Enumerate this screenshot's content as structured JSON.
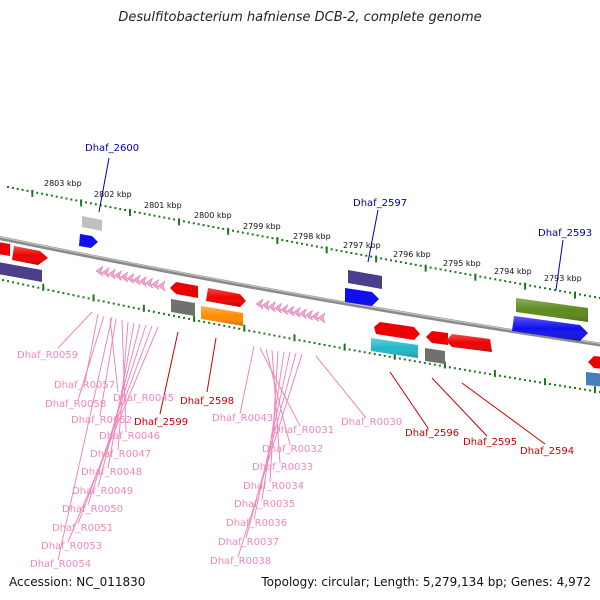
{
  "title": "Desulfitobacterium hafniense DCB-2, complete genome",
  "footer": {
    "accession": "Accession: NC_011830",
    "topology": "Topology: circular; Length: 5,279,134 bp; Genes: 4,972"
  },
  "colors": {
    "backbone": "#8a8a8a",
    "tick_green": "#1a7a1a",
    "label_blue": "#0000aa",
    "label_red": "#cc0000",
    "label_pink": "#ee88bb",
    "gene_red": "#ee0000",
    "gene_blue": "#1010ee",
    "gene_navy": "#4b3f8c",
    "gene_olive": "#5c8a1e",
    "gene_orange": "#ff8c00",
    "gene_gray": "#707070",
    "gene_lightgray": "#c0c0c0",
    "gene_cyan": "#20b8c8",
    "gene_steel": "#4a7eb8",
    "rrna_pink": "#f5a0d0"
  },
  "scale_labels": [
    "2803 kbp",
    "2802 kbp",
    "2801 kbp",
    "2800 kbp",
    "2799 kbp",
    "2798 kbp",
    "2797 kbp",
    "2796 kbp",
    "2795 kbp",
    "2794 kbp",
    "2793 kbp"
  ],
  "gene_labels_blue": [
    "Dhaf_2600",
    "Dhaf_2597",
    "Dhaf_2593"
  ],
  "gene_labels_red": [
    "Dhaf_2599",
    "Dhaf_2598",
    "Dhaf_2596",
    "Dhaf_2595",
    "Dhaf_2594"
  ],
  "gene_labels_pink": [
    "Dhaf_R0059",
    "Dhaf_R0057",
    "Dhaf_R0058",
    "Dhaf_R0045",
    "Dhaf_R0052",
    "Dhaf_R0046",
    "Dhaf_R0047",
    "Dhaf_R0048",
    "Dhaf_R0049",
    "Dhaf_R0050",
    "Dhaf_R0051",
    "Dhaf_R0053",
    "Dhaf_R0054",
    "Dhaf_R0043",
    "Dhaf_R0031",
    "Dhaf_R0032",
    "Dhaf_R0033",
    "Dhaf_R0034",
    "Dhaf_R0035",
    "Dhaf_R0036",
    "Dhaf_R0037",
    "Dhaf_R0038",
    "Dhaf_R0030"
  ]
}
